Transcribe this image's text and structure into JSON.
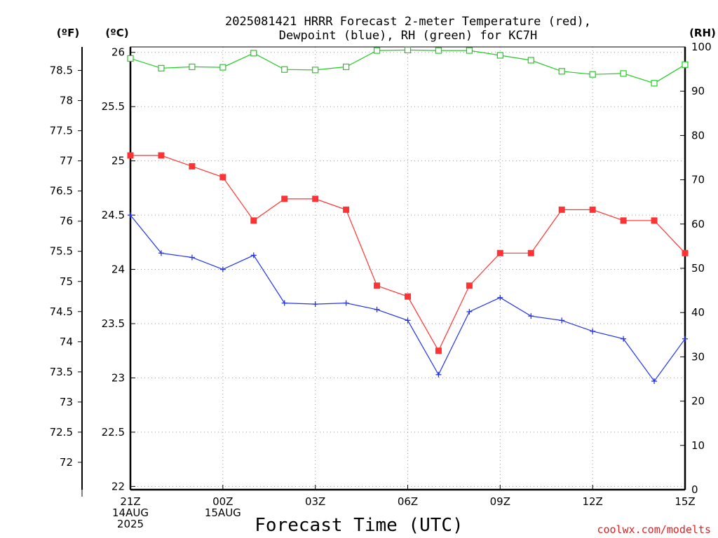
{
  "title": {
    "line1": "2025081421 HRRR Forecast 2-meter Temperature (red),",
    "line2": "Dewpoint (blue), RH (green) for KC7H"
  },
  "unit_labels": {
    "fahrenheit": "(ºF)",
    "celsius": "(ºC)",
    "rh": "(RH)"
  },
  "x_axis_title": "Forecast Time (UTC)",
  "credit": "coolwx.com/modelts",
  "colors": {
    "temperature": "#ff3333",
    "dewpoint": "#2233ee",
    "rh": "#22cc22",
    "credit": "#dd2222",
    "grid": "#999999"
  },
  "chart_data": {
    "type": "line",
    "title": "2025081421 HRRR Forecast 2-meter Temperature (red), Dewpoint (blue), RH (green) for KC7H",
    "xlabel": "Forecast Time (UTC)",
    "x_hours": [
      0,
      1,
      2,
      3,
      4,
      5,
      6,
      7,
      8,
      9,
      10,
      11,
      12,
      13,
      14,
      15,
      16,
      17,
      18
    ],
    "xlim": [
      0,
      18
    ],
    "x_ticks": [
      {
        "hour": 0,
        "lines": [
          "21Z",
          "14AUG",
          "2025"
        ]
      },
      {
        "hour": 3,
        "lines": [
          "00Z",
          "15AUG"
        ]
      },
      {
        "hour": 6,
        "lines": [
          "03Z"
        ]
      },
      {
        "hour": 9,
        "lines": [
          "06Z"
        ]
      },
      {
        "hour": 12,
        "lines": [
          "09Z"
        ]
      },
      {
        "hour": 15,
        "lines": [
          "12Z"
        ]
      },
      {
        "hour": 18,
        "lines": [
          "15Z"
        ]
      }
    ],
    "y_celsius": {
      "label": "(ºC)",
      "lim": [
        21.97,
        26.05
      ],
      "ticks": [
        "22",
        "22.5",
        "23",
        "23.5",
        "24",
        "24.5",
        "25",
        "25.5",
        "26"
      ],
      "grid": true
    },
    "y_fahrenheit": {
      "label": "(ºF)",
      "ticks": [
        "72",
        "72.5",
        "73",
        "73.5",
        "74",
        "74.5",
        "75",
        "75.5",
        "76",
        "76.5",
        "77",
        "77.5",
        "78",
        "78.5"
      ]
    },
    "y_rh": {
      "label": "(RH)",
      "lim": [
        0,
        100
      ],
      "ticks": [
        "0",
        "10",
        "20",
        "30",
        "40",
        "50",
        "60",
        "70",
        "80",
        "90",
        "100"
      ]
    },
    "series": [
      {
        "axis": "celsius",
        "marker": "filled-square",
        "color": "#ff3333",
        "values": [
          25.05,
          25.05,
          24.95,
          24.85,
          24.45,
          24.65,
          24.65,
          24.55,
          23.85,
          23.75,
          23.25,
          23.85,
          24.15,
          24.15,
          24.55,
          24.55,
          24.45,
          24.45,
          24.15
        ]
      },
      {
        "axis": "celsius",
        "marker": "plus",
        "color": "#2233ee",
        "values": [
          24.5,
          24.15,
          24.11,
          24.0,
          24.13,
          23.69,
          23.68,
          23.69,
          23.63,
          23.53,
          23.03,
          23.61,
          23.74,
          23.57,
          23.53,
          23.43,
          23.36,
          22.97,
          23.36
        ]
      },
      {
        "axis": "rh",
        "marker": "open-square",
        "color": "#22cc22",
        "values": [
          97.4,
          95.2,
          95.5,
          95.4,
          98.6,
          94.9,
          94.8,
          95.5,
          99.2,
          99.3,
          99.2,
          99.2,
          98.1,
          97.0,
          94.5,
          93.8,
          94.0,
          91.8,
          96.0
        ]
      }
    ]
  }
}
